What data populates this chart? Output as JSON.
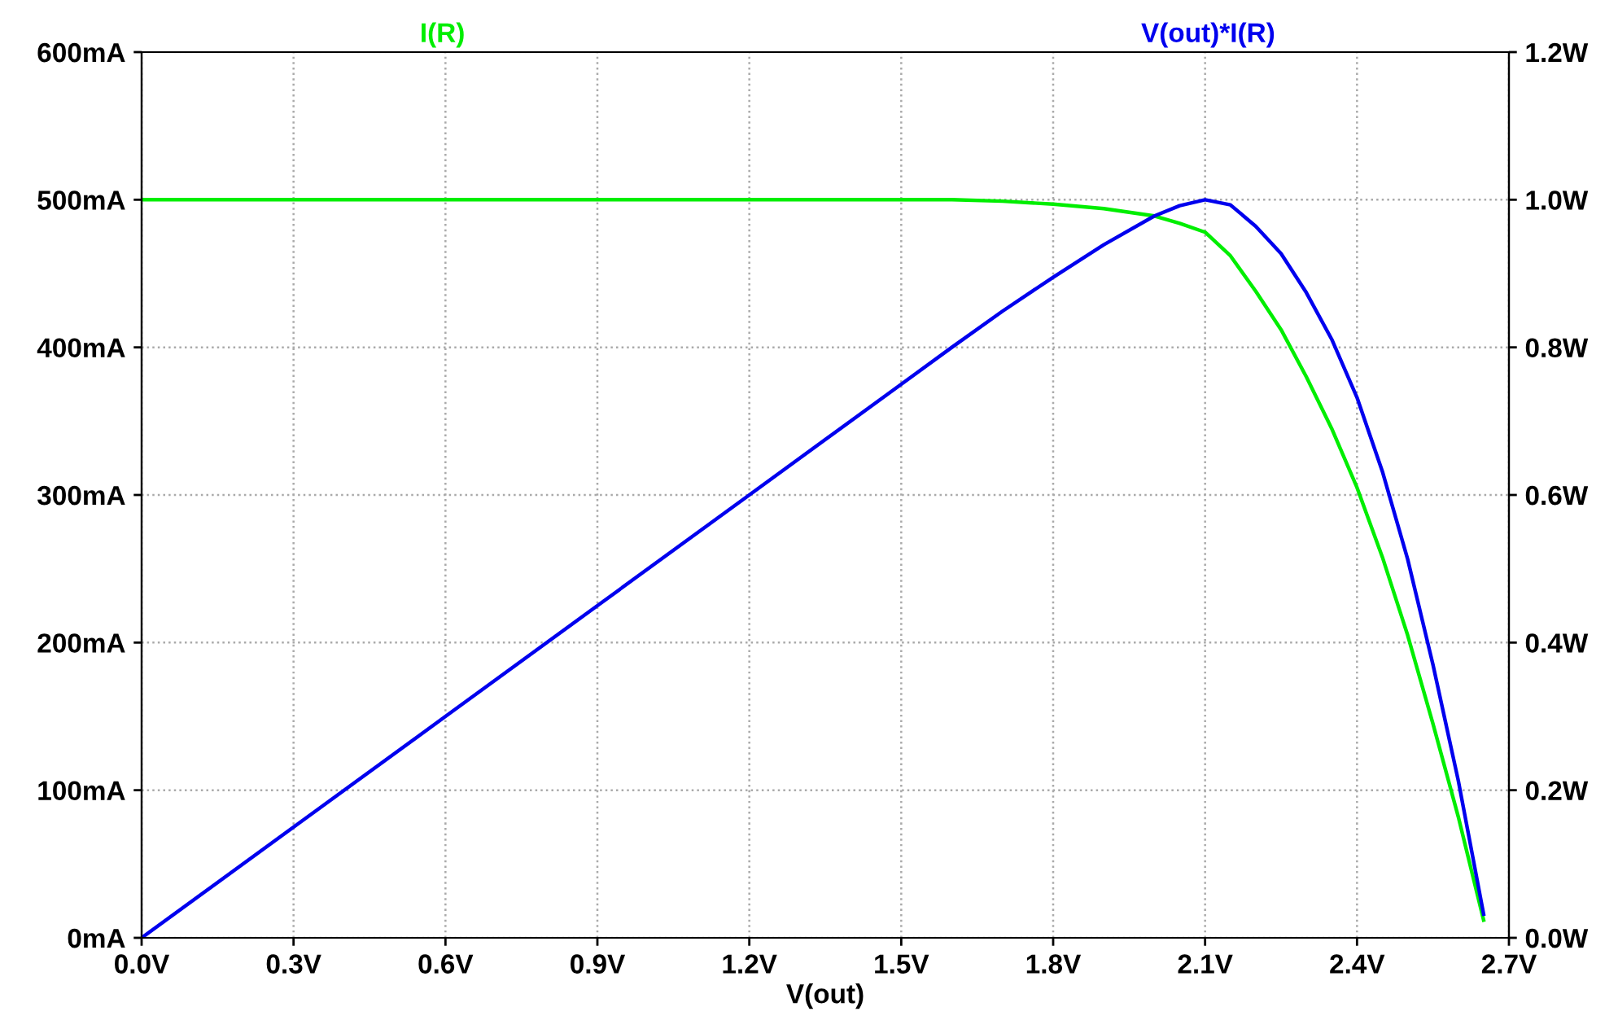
{
  "chart_data": {
    "type": "line",
    "xlabel": "V(out)",
    "legend": "top",
    "grid": true,
    "xlim": [
      0,
      2.7
    ],
    "xticks": [
      {
        "value": 0,
        "label": "0.0V"
      },
      {
        "value": 0.3,
        "label": "0.3V"
      },
      {
        "value": 0.6,
        "label": "0.6V"
      },
      {
        "value": 0.9,
        "label": "0.9V"
      },
      {
        "value": 1.2,
        "label": "1.2V"
      },
      {
        "value": 1.5,
        "label": "1.5V"
      },
      {
        "value": 1.8,
        "label": "1.8V"
      },
      {
        "value": 2.1,
        "label": "2.1V"
      },
      {
        "value": 2.4,
        "label": "2.4V"
      },
      {
        "value": 2.7,
        "label": "2.7V"
      }
    ],
    "ylim": [
      0,
      600
    ],
    "yticks": [
      {
        "value": 0,
        "label": "0mA"
      },
      {
        "value": 100,
        "label": "100mA"
      },
      {
        "value": 200,
        "label": "200mA"
      },
      {
        "value": 300,
        "label": "300mA"
      },
      {
        "value": 400,
        "label": "400mA"
      },
      {
        "value": 500,
        "label": "500mA"
      },
      {
        "value": 600,
        "label": "600mA"
      }
    ],
    "y2lim": [
      0,
      1.2
    ],
    "y2ticks": [
      {
        "value": 0,
        "label": "0.0W"
      },
      {
        "value": 0.2,
        "label": "0.2W"
      },
      {
        "value": 0.4,
        "label": "0.4W"
      },
      {
        "value": 0.6,
        "label": "0.6W"
      },
      {
        "value": 0.8,
        "label": "0.8W"
      },
      {
        "value": 1.0,
        "label": "1.0W"
      },
      {
        "value": 1.2,
        "label": "1.2W"
      }
    ],
    "series": [
      {
        "name": "I(R)",
        "color": "#00ee00",
        "x": [
          0,
          0.3,
          0.6,
          0.9,
          1.2,
          1.5,
          1.6,
          1.7,
          1.8,
          1.9,
          2.0,
          2.05,
          2.1,
          2.15,
          2.2,
          2.25,
          2.3,
          2.35,
          2.4,
          2.45,
          2.5,
          2.55,
          2.6,
          2.65
        ],
        "values": [
          500,
          500,
          500,
          500,
          500,
          500,
          500,
          499,
          497,
          494,
          489,
          484,
          478,
          462,
          438,
          412,
          380,
          345,
          305,
          258,
          205,
          145,
          82,
          12
        ]
      },
      {
        "name": "V(out)*I(R)",
        "color": "#0000ee",
        "axis": "y2",
        "x": [
          0,
          0.3,
          0.6,
          0.9,
          1.2,
          1.5,
          1.6,
          1.7,
          1.8,
          1.9,
          2.0,
          2.05,
          2.1,
          2.15,
          2.2,
          2.25,
          2.3,
          2.35,
          2.4,
          2.45,
          2.5,
          2.55,
          2.6,
          2.65
        ],
        "values": [
          0,
          0.15,
          0.3,
          0.45,
          0.6,
          0.75,
          0.8,
          0.849,
          0.895,
          0.939,
          0.978,
          0.992,
          1.0,
          0.993,
          0.964,
          0.927,
          0.874,
          0.811,
          0.732,
          0.632,
          0.513,
          0.37,
          0.213,
          0.032
        ]
      }
    ]
  }
}
